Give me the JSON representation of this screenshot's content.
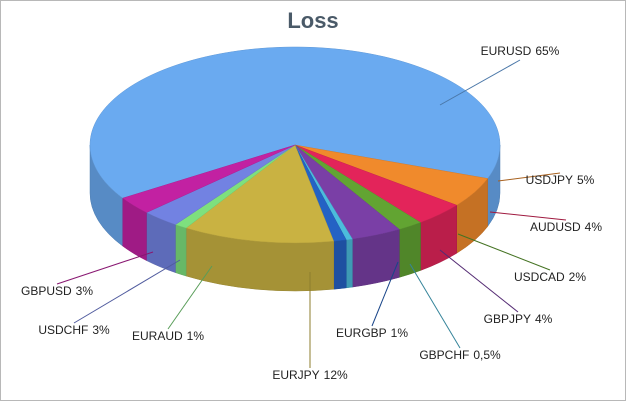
{
  "chart_data": {
    "type": "pie3d",
    "title": "Loss",
    "categories": [
      "EURUSD",
      "USDJPY",
      "AUDUSD",
      "USDCAD",
      "GBPJPY",
      "GBPCHF",
      "EURGBP",
      "EURJPY",
      "EURAUD",
      "USDCHF",
      "GBPUSD"
    ],
    "values": [
      65,
      5,
      4,
      2,
      4,
      0.5,
      1,
      12,
      1,
      3,
      3
    ],
    "value_labels": [
      "65%",
      "5%",
      "4%",
      "2%",
      "4%",
      "0,5%",
      "1%",
      "12%",
      "1%",
      "3%",
      "3%"
    ],
    "colors": [
      "#6aaaf0",
      "#f08a2c",
      "#e3245a",
      "#62a432",
      "#7a3fa6",
      "#4cbcdc",
      "#2462c4",
      "#c9b242",
      "#7ee07e",
      "#7282e2",
      "#c221a2"
    ]
  }
}
